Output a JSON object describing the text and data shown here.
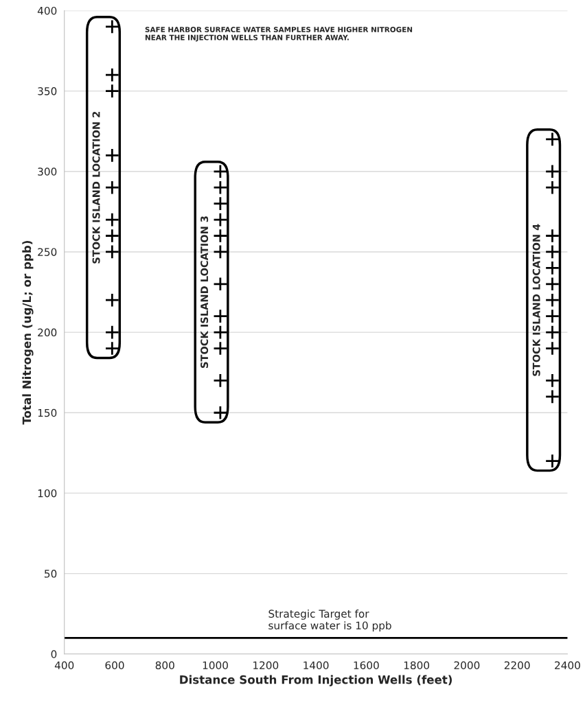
{
  "chart_data": {
    "type": "scatter",
    "xlabel": "Distance South From Injection Wells (feet)",
    "ylabel": "Total Nitrogen (ug/L; or ppb)",
    "xlim": [
      400,
      2400
    ],
    "xticks": [
      400,
      600,
      800,
      1000,
      1200,
      1400,
      1600,
      1800,
      2000,
      2200,
      2400
    ],
    "ylim": [
      0,
      400
    ],
    "yticks": [
      0,
      50,
      100,
      150,
      200,
      250,
      300,
      350,
      400
    ],
    "grid": "y",
    "marker": "cross",
    "legend": false,
    "series": [
      {
        "name": "STOCK ISLAND LOCATION 2",
        "color": "#000000",
        "x": [
          590,
          590,
          590,
          590,
          590,
          590,
          590,
          590,
          590,
          590,
          590
        ],
        "values": [
          390,
          360,
          350,
          310,
          290,
          270,
          260,
          250,
          220,
          200,
          190
        ]
      },
      {
        "name": "STOCK ISLAND LOCATION 3",
        "color": "#000000",
        "x": [
          1020,
          1020,
          1020,
          1020,
          1020,
          1020,
          1020,
          1020,
          1020,
          1020,
          1020,
          1020
        ],
        "values": [
          300,
          290,
          280,
          270,
          260,
          250,
          230,
          210,
          200,
          190,
          170,
          150
        ]
      },
      {
        "name": "STOCK ISLAND LOCATION 4",
        "color": "#000000",
        "x": [
          2340,
          2340,
          2340,
          2340,
          2340,
          2340,
          2340,
          2340,
          2340,
          2340,
          2340,
          2340,
          2340,
          2340
        ],
        "values": [
          320,
          300,
          290,
          260,
          250,
          240,
          230,
          220,
          210,
          200,
          190,
          170,
          160,
          120
        ]
      }
    ],
    "ref_lines": [
      {
        "axis": "y",
        "value": 10,
        "label": "Strategic Target for\nsurface water is 10 ppb",
        "color": "#000000",
        "line_style": "solid"
      }
    ],
    "annotations": [
      "SAFE HARBOR SURFACE WATER SAMPLES HAVE HIGHER NITROGEN\nNEAR THE INJECTION WELLS THAN FURTHER AWAY."
    ]
  }
}
